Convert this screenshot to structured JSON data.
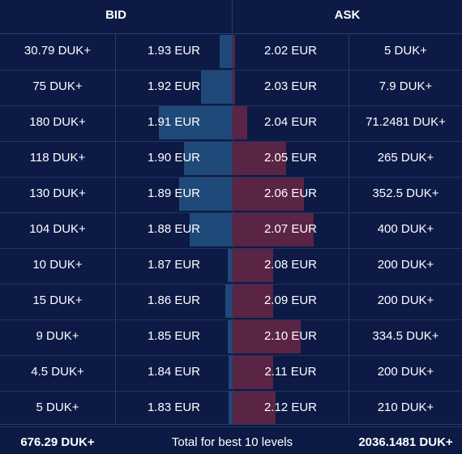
{
  "headers": {
    "bid": "BID",
    "ask": "ASK"
  },
  "colors": {
    "background": "#0c1a45",
    "bid_bar": "#1f4978",
    "ask_bar": "#5a2444"
  },
  "rows": [
    {
      "bid_amount": "30.79 DUK+",
      "bid_price": "1.93 EUR",
      "ask_price": "2.02 EUR",
      "ask_amount": "5 DUK+",
      "bid_depth": 30.79,
      "ask_depth": 5
    },
    {
      "bid_amount": "75 DUK+",
      "bid_price": "1.92 EUR",
      "ask_price": "2.03 EUR",
      "ask_amount": "7.9 DUK+",
      "bid_depth": 75,
      "ask_depth": 7.9
    },
    {
      "bid_amount": "180 DUK+",
      "bid_price": "1.91 EUR",
      "ask_price": "2.04 EUR",
      "ask_amount": "71.2481 DUK+",
      "bid_depth": 180,
      "ask_depth": 71.2481
    },
    {
      "bid_amount": "118 DUK+",
      "bid_price": "1.90 EUR",
      "ask_price": "2.05 EUR",
      "ask_amount": "265 DUK+",
      "bid_depth": 118,
      "ask_depth": 265
    },
    {
      "bid_amount": "130 DUK+",
      "bid_price": "1.89 EUR",
      "ask_price": "2.06 EUR",
      "ask_amount": "352.5 DUK+",
      "bid_depth": 130,
      "ask_depth": 352.5
    },
    {
      "bid_amount": "104 DUK+",
      "bid_price": "1.88 EUR",
      "ask_price": "2.07 EUR",
      "ask_amount": "400 DUK+",
      "bid_depth": 104,
      "ask_depth": 400
    },
    {
      "bid_amount": "10 DUK+",
      "bid_price": "1.87 EUR",
      "ask_price": "2.08 EUR",
      "ask_amount": "200 DUK+",
      "bid_depth": 10,
      "ask_depth": 200
    },
    {
      "bid_amount": "15 DUK+",
      "bid_price": "1.86 EUR",
      "ask_price": "2.09 EUR",
      "ask_amount": "200 DUK+",
      "bid_depth": 15,
      "ask_depth": 200
    },
    {
      "bid_amount": "9 DUK+",
      "bid_price": "1.85 EUR",
      "ask_price": "2.10 EUR",
      "ask_amount": "334.5 DUK+",
      "bid_depth": 9,
      "ask_depth": 334.5
    },
    {
      "bid_amount": "4.5 DUK+",
      "bid_price": "1.84 EUR",
      "ask_price": "2.11 EUR",
      "ask_amount": "200 DUK+",
      "bid_depth": 4.5,
      "ask_depth": 200
    },
    {
      "bid_amount": "5 DUK+",
      "bid_price": "1.83 EUR",
      "ask_price": "2.12 EUR",
      "ask_amount": "210 DUK+",
      "bid_depth": 5,
      "ask_depth": 210
    }
  ],
  "footer": {
    "bid_total": "676.29 DUK+",
    "label": "Total for best 10 levels",
    "ask_total": "2036.1481 DUK+"
  }
}
